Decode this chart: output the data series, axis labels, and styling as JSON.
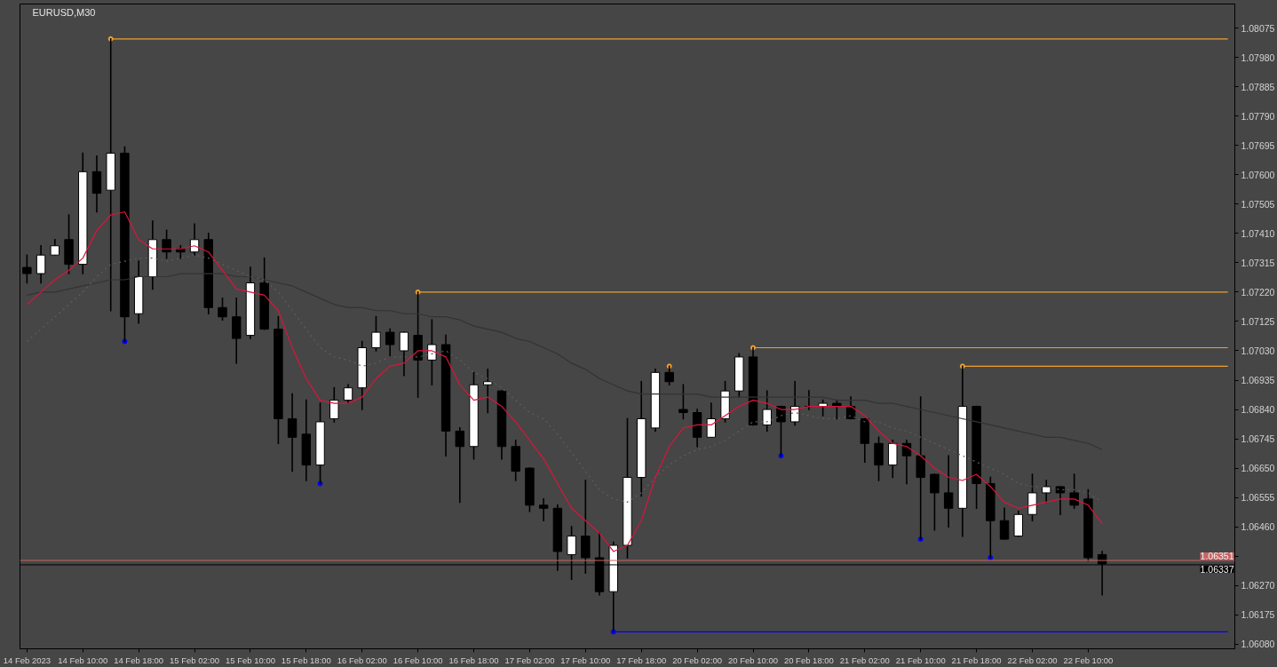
{
  "chart_data": {
    "type": "candlestick",
    "title": "EURUSD,M30",
    "categories": [
      "14 Feb 2023",
      null,
      null,
      null,
      "14 Feb 10:00",
      null,
      null,
      null,
      "14 Feb 18:00",
      null,
      null,
      null,
      "15 Feb 02:00",
      null,
      null,
      null,
      "15 Feb 10:00",
      null,
      null,
      null,
      "15 Feb 18:00",
      null,
      null,
      null,
      "16 Feb 02:00",
      null,
      null,
      null,
      "16 Feb 10:00",
      null,
      null,
      null,
      "16 Feb 18:00",
      null,
      null,
      null,
      "17 Feb 02:00",
      null,
      null,
      null,
      "17 Feb 10:00",
      null,
      null,
      null,
      "17 Feb 18:00",
      null,
      null,
      null,
      "20 Feb 02:00",
      null,
      null,
      null,
      "20 Feb 10:00",
      null,
      null,
      null,
      "20 Feb 18:00",
      null,
      null,
      null,
      "21 Feb 02:00",
      null,
      null,
      null,
      "21 Feb 10:00",
      null,
      null,
      null,
      "21 Feb 18:00",
      null,
      null,
      null,
      "22 Feb 02:00",
      null,
      null,
      null,
      "22 Feb 10:00",
      null,
      null,
      null,
      null,
      null,
      null,
      null,
      null,
      null,
      null
    ],
    "ohlc": [
      [
        1.073,
        1.0734,
        1.0725,
        1.0728
      ],
      [
        1.0728,
        1.0737,
        1.0725,
        1.0734
      ],
      [
        1.0734,
        1.0739,
        1.0734,
        1.0737
      ],
      [
        1.0739,
        1.0747,
        1.0728,
        1.0731
      ],
      [
        1.0731,
        1.0767,
        1.0728,
        1.0761
      ],
      [
        1.0761,
        1.0766,
        1.0748,
        1.0754
      ],
      [
        1.0755,
        1.0804,
        1.0716,
        1.0767
      ],
      [
        1.0767,
        1.0769,
        1.0706,
        1.0714
      ],
      [
        1.0715,
        1.0732,
        1.0712,
        1.0727
      ],
      [
        1.0727,
        1.0745,
        1.0723,
        1.0739
      ],
      [
        1.0739,
        1.0742,
        1.0733,
        1.0735
      ],
      [
        1.0736,
        1.0737,
        1.0733,
        1.0735
      ],
      [
        1.0735,
        1.0744,
        1.0734,
        1.0739
      ],
      [
        1.0739,
        1.0741,
        1.0715,
        1.0717
      ],
      [
        1.0717,
        1.072,
        1.0713,
        1.0714
      ],
      [
        1.0714,
        1.072,
        1.0699,
        1.0707
      ],
      [
        1.0708,
        1.073,
        1.0707,
        1.0725
      ],
      [
        1.0725,
        1.0733,
        1.071,
        1.071
      ],
      [
        1.071,
        1.0714,
        1.0673,
        1.0681
      ],
      [
        1.0681,
        1.0689,
        1.0664,
        1.0675
      ],
      [
        1.0676,
        1.0687,
        1.0661,
        1.0666
      ],
      [
        1.0666,
        1.0686,
        1.066,
        1.068
      ],
      [
        1.0681,
        1.0691,
        1.068,
        1.0687
      ],
      [
        1.0687,
        1.0692,
        1.0686,
        1.0691
      ],
      [
        1.0691,
        1.0706,
        1.0684,
        1.0704
      ],
      [
        1.0704,
        1.0714,
        1.0703,
        1.0709
      ],
      [
        1.0709,
        1.071,
        1.0701,
        1.0705
      ],
      [
        1.0703,
        1.0709,
        1.0695,
        1.0709
      ],
      [
        1.0708,
        1.0722,
        1.0688,
        1.07
      ],
      [
        1.07,
        1.0713,
        1.0692,
        1.0705
      ],
      [
        1.0705,
        1.0708,
        1.0669,
        1.0677
      ],
      [
        1.0677,
        1.0678,
        1.0654,
        1.0672
      ],
      [
        1.0672,
        1.0696,
        1.0668,
        1.0692
      ],
      [
        1.0692,
        1.0697,
        1.0683,
        1.0693
      ],
      [
        1.069,
        1.069,
        1.0668,
        1.0672
      ],
      [
        1.0672,
        1.0674,
        1.0661,
        1.0664
      ],
      [
        1.0665,
        1.0665,
        1.0651,
        1.0653
      ],
      [
        1.0653,
        1.0655,
        1.0648,
        1.0652
      ],
      [
        1.0652,
        1.0653,
        1.0632,
        1.0638
      ],
      [
        1.0637,
        1.0646,
        1.0629,
        1.0643
      ],
      [
        1.0643,
        1.0661,
        1.0631,
        1.0636
      ],
      [
        1.0636,
        1.0644,
        1.0624,
        1.0625
      ],
      [
        1.0625,
        1.0641,
        1.0612,
        1.064
      ],
      [
        1.064,
        1.0681,
        1.0636,
        1.0662
      ],
      [
        1.0662,
        1.0693,
        1.0656,
        1.0681
      ],
      [
        1.0678,
        1.0697,
        1.0677,
        1.0696
      ],
      [
        1.0696,
        1.0698,
        1.0692,
        1.0693
      ],
      [
        1.0684,
        1.0692,
        1.0681,
        1.0683
      ],
      [
        1.0683,
        1.0684,
        1.0672,
        1.0675
      ],
      [
        1.0675,
        1.0686,
        1.0675,
        1.0681
      ],
      [
        1.0681,
        1.0693,
        1.068,
        1.069
      ],
      [
        1.069,
        1.0702,
        1.0688,
        1.0701
      ],
      [
        1.0701,
        1.0704,
        1.0679,
        1.0679
      ],
      [
        1.0679,
        1.069,
        1.0677,
        1.0684
      ],
      [
        1.0685,
        1.0685,
        1.0669,
        1.068
      ],
      [
        1.068,
        1.0693,
        1.0679,
        1.0685
      ],
      [
        1.0685,
        1.069,
        1.0684,
        1.0685
      ],
      [
        1.0685,
        1.0687,
        1.0682,
        1.0686
      ],
      [
        1.0686,
        1.0687,
        1.0681,
        1.0685
      ],
      [
        1.0685,
        1.0688,
        1.0681,
        1.0681
      ],
      [
        1.0681,
        1.0681,
        1.0667,
        1.0673
      ],
      [
        1.0673,
        1.0675,
        1.0661,
        1.0666
      ],
      [
        1.0666,
        1.0674,
        1.0662,
        1.0673
      ],
      [
        1.0673,
        1.0674,
        1.066,
        1.0669
      ],
      [
        1.0669,
        1.0688,
        1.0642,
        1.0662
      ],
      [
        1.0663,
        1.0663,
        1.0645,
        1.0657
      ],
      [
        1.0657,
        1.0669,
        1.0646,
        1.0652
      ],
      [
        1.0652,
        1.0698,
        1.0643,
        1.0685
      ],
      [
        1.0685,
        1.0685,
        1.0652,
        1.066
      ],
      [
        1.066,
        1.0662,
        1.0636,
        1.0648
      ],
      [
        1.0648,
        1.0652,
        1.0642,
        1.0642
      ],
      [
        1.0643,
        1.0651,
        1.0643,
        1.065
      ],
      [
        1.065,
        1.0663,
        1.0648,
        1.0657
      ],
      [
        1.0657,
        1.0661,
        1.0654,
        1.0659
      ],
      [
        1.0659,
        1.0659,
        1.065,
        1.0657
      ],
      [
        1.0657,
        1.0663,
        1.0652,
        1.0653
      ],
      [
        1.0655,
        1.0658,
        1.0635,
        1.0636
      ],
      [
        1.0637,
        1.0638,
        1.0624,
        1.0634
      ],
      null,
      null,
      null,
      null,
      null,
      null,
      null,
      null,
      null
    ],
    "colors": [
      "#000000",
      "#ffffff",
      "#ffffff",
      "#000000",
      "#ffffff",
      "#000000",
      "#ffffff",
      "#000000",
      "#ffffff",
      "#ffffff",
      "#000000",
      "#000000",
      "#ffffff",
      "#000000",
      "#000000",
      "#000000",
      "#ffffff",
      "#000000",
      "#000000",
      "#000000",
      "#000000",
      "#ffffff",
      "#ffffff",
      "#ffffff",
      "#ffffff",
      "#ffffff",
      "#000000",
      "#ffffff",
      "#000000",
      "#ffffff",
      "#000000",
      "#000000",
      "#ffffff",
      "#ffffff",
      "#000000",
      "#000000",
      "#000000",
      "#000000",
      "#000000",
      "#ffffff",
      "#000000",
      "#000000",
      "#ffffff",
      "#ffffff",
      "#ffffff",
      "#ffffff",
      "#000000",
      "#000000",
      "#000000",
      "#ffffff",
      "#ffffff",
      "#ffffff",
      "#000000",
      "#ffffff",
      "#000000",
      "#ffffff",
      "#000000",
      "#ffffff",
      "#000000",
      "#000000",
      "#000000",
      "#000000",
      "#ffffff",
      "#000000",
      "#000000",
      "#000000",
      "#000000",
      "#ffffff",
      "#000000",
      "#000000",
      "#000000",
      "#ffffff",
      "#ffffff",
      "#ffffff",
      "#000000",
      "#000000",
      "#000000",
      "#000000",
      null,
      null,
      null,
      null,
      null,
      null,
      null,
      null,
      null
    ],
    "color": "#000000",
    "series": [
      {
        "type": "line",
        "color": "#333333",
        "values": [
          1.0721,
          1.0722,
          1.0722,
          1.0723,
          1.0724,
          1.0725,
          1.0726,
          1.0726,
          1.0727,
          1.0727,
          1.0727,
          1.0728,
          1.0728,
          1.0728,
          1.0728,
          1.0727,
          1.0727,
          1.0726,
          1.0725,
          1.0724,
          1.0722,
          1.072,
          1.0718,
          1.0717,
          1.0717,
          1.0716,
          1.0716,
          1.0715,
          1.0715,
          1.0714,
          1.0714,
          1.0713,
          1.0711,
          1.071,
          1.0709,
          1.0707,
          1.0706,
          1.0704,
          1.0702,
          1.0699,
          1.0697,
          1.0694,
          1.0692,
          1.069,
          1.0689,
          1.0689,
          1.0689,
          1.0689,
          1.0689,
          1.0688,
          1.0688,
          1.0688,
          1.0688,
          1.0688,
          1.0688,
          1.0688,
          1.0688,
          1.0688,
          1.0687,
          1.0687,
          1.0687,
          1.0686,
          1.0686,
          1.0685,
          1.0684,
          1.0683,
          1.0682,
          1.0681,
          1.068,
          1.0679,
          1.0678,
          1.0677,
          1.0676,
          1.0675,
          1.0675,
          1.0674,
          1.0673,
          1.0671,
          null,
          null,
          null,
          null,
          null,
          null,
          null,
          null,
          null
        ]
      },
      {
        "type": "line",
        "color": "#5e5e5e",
        "line_style": "dotted",
        "values": [
          1.0706,
          1.071,
          1.0714,
          1.0718,
          1.0722,
          1.0727,
          1.0731,
          1.0732,
          1.0733,
          1.0733,
          1.0732,
          1.0733,
          1.0734,
          1.0733,
          1.0731,
          1.0729,
          1.0727,
          1.0726,
          1.0722,
          1.0716,
          1.071,
          1.0704,
          1.0701,
          1.07,
          1.0698,
          1.0699,
          1.0701,
          1.0701,
          1.0701,
          1.0702,
          1.0703,
          1.07,
          1.0696,
          1.0694,
          1.0691,
          1.0687,
          1.0683,
          1.0681,
          1.0676,
          1.067,
          1.0664,
          1.0658,
          1.0655,
          1.0654,
          1.0657,
          1.0662,
          1.0666,
          1.0669,
          1.0671,
          1.0672,
          1.0674,
          1.0677,
          1.068,
          1.068,
          1.0682,
          1.0683,
          1.0682,
          1.0681,
          1.0681,
          1.0682,
          1.068,
          1.068,
          1.0678,
          1.0677,
          1.0675,
          1.0673,
          1.0671,
          1.0669,
          1.0667,
          1.0665,
          1.0663,
          1.066,
          1.0659,
          1.0659,
          1.0658,
          1.0658,
          1.0657,
          1.0654,
          null,
          null,
          null,
          null,
          null,
          null,
          null,
          null,
          null
        ]
      },
      {
        "type": "line",
        "color": "#dc143c",
        "values": [
          1.0718,
          1.0722,
          1.0726,
          1.0729,
          1.0733,
          1.0742,
          1.0747,
          1.0748,
          1.0739,
          1.0736,
          1.0736,
          1.0736,
          1.0737,
          1.0735,
          1.0729,
          1.0723,
          1.0722,
          1.0721,
          1.0716,
          1.0704,
          1.0694,
          1.0687,
          1.0686,
          1.0686,
          1.0688,
          1.0694,
          1.0698,
          1.0699,
          1.0703,
          1.0703,
          1.0701,
          1.0692,
          1.0687,
          1.0688,
          1.0685,
          1.068,
          1.0674,
          1.0668,
          1.066,
          1.0652,
          1.0648,
          1.0644,
          1.0638,
          1.064,
          1.0648,
          1.0662,
          1.0672,
          1.0678,
          1.0679,
          1.0679,
          1.0682,
          1.0685,
          1.0687,
          1.0686,
          1.0684,
          1.0684,
          1.0685,
          1.0685,
          1.0685,
          1.0685,
          1.0682,
          1.0677,
          1.0673,
          1.0672,
          1.0669,
          1.0665,
          1.0662,
          1.0661,
          1.0663,
          1.0659,
          1.0654,
          1.0652,
          1.0653,
          1.0654,
          1.0655,
          1.0655,
          1.0653,
          1.0647,
          null,
          null,
          null,
          null,
          null,
          null,
          null,
          null,
          null
        ]
      },
      {
        "type": "line",
        "color": "#f0a030",
        "values": [
          null,
          null,
          null,
          null,
          null,
          null,
          1.0804,
          1.0804,
          1.0804,
          1.0804,
          1.0804,
          1.0804,
          1.0804,
          1.0804,
          1.0804,
          1.0804,
          1.0804,
          1.0804,
          1.0804,
          1.0804,
          1.0804,
          1.0804,
          1.0804,
          1.0804,
          1.0804,
          1.0804,
          1.0804,
          1.0804,
          1.0804,
          1.0804,
          1.0804,
          1.0804,
          1.0804,
          1.0804,
          1.0804,
          1.0804,
          1.0804,
          1.0804,
          1.0804,
          1.0804,
          1.0804,
          1.0804,
          1.0804,
          1.0804,
          1.0804,
          1.0804,
          1.0804,
          1.0804,
          1.0804,
          1.0804,
          1.0804,
          1.0804,
          1.0804,
          1.0804,
          1.0804,
          1.0804,
          1.0804,
          1.0804,
          1.0804,
          1.0804,
          1.0804,
          1.0804,
          1.0804,
          1.0804,
          1.0804,
          1.0804,
          1.0804,
          1.0804,
          1.0804,
          1.0804,
          1.0804,
          1.0804,
          1.0804,
          1.0804,
          1.0804,
          1.0804,
          1.0804,
          1.0804,
          1.0804,
          1.0804,
          1.0804,
          1.0804,
          1.0804,
          1.0804,
          1.0804,
          1.0804,
          1.0804
        ]
      },
      {
        "type": "line",
        "color": "#f0a030",
        "values": [
          null,
          null,
          null,
          null,
          null,
          null,
          null,
          null,
          null,
          null,
          null,
          null,
          null,
          null,
          null,
          null,
          null,
          null,
          null,
          null,
          null,
          null,
          null,
          null,
          null,
          null,
          null,
          null,
          1.0722,
          1.0722,
          1.0722,
          1.0722,
          1.0722,
          1.0722,
          1.0722,
          1.0722,
          1.0722,
          1.0722,
          1.0722,
          1.0722,
          1.0722,
          1.0722,
          1.0722,
          1.0722,
          1.0722,
          1.0722,
          1.0722,
          1.0722,
          1.0722,
          1.0722,
          1.0722,
          1.0722,
          1.0722,
          1.0722,
          1.0722,
          1.0722,
          1.0722,
          1.0722,
          1.0722,
          1.0722,
          1.0722,
          1.0722,
          1.0722,
          1.0722,
          1.0722,
          1.0722,
          1.0722,
          1.0722,
          1.0722,
          1.0722,
          1.0722,
          1.0722,
          1.0722,
          1.0722,
          1.0722,
          1.0722,
          1.0722,
          1.0722,
          1.0722,
          1.0722,
          1.0722,
          1.0722,
          1.0722,
          1.0722,
          1.0722,
          1.0722,
          1.0722
        ]
      },
      {
        "type": "line",
        "color": "#f0a030",
        "values": [
          null,
          null,
          null,
          null,
          null,
          null,
          null,
          null,
          null,
          null,
          null,
          null,
          null,
          null,
          null,
          null,
          null,
          null,
          null,
          null,
          null,
          null,
          null,
          null,
          null,
          null,
          null,
          null,
          null,
          null,
          null,
          null,
          null,
          null,
          null,
          null,
          null,
          null,
          null,
          null,
          null,
          null,
          null,
          null,
          null,
          null,
          null,
          null,
          null,
          null,
          null,
          null,
          1.0704,
          1.0704,
          1.0704,
          1.0704,
          1.0704,
          1.0704,
          1.0704,
          1.0704,
          1.0704,
          1.0704,
          1.0704,
          1.0704,
          1.0704,
          1.0704,
          1.0704,
          1.0704,
          1.0704,
          1.0704,
          1.0704,
          1.0704,
          1.0704,
          1.0704,
          1.0704,
          1.0704,
          1.0704,
          1.0704,
          1.0704,
          1.0704,
          1.0704,
          1.0704,
          1.0704,
          1.0704,
          1.0704,
          1.0704,
          1.0704
        ]
      },
      {
        "type": "line",
        "color": "#f0a030",
        "values": [
          null,
          null,
          null,
          null,
          null,
          null,
          null,
          null,
          null,
          null,
          null,
          null,
          null,
          null,
          null,
          null,
          null,
          null,
          null,
          null,
          null,
          null,
          null,
          null,
          null,
          null,
          null,
          null,
          null,
          null,
          null,
          null,
          null,
          null,
          null,
          null,
          null,
          null,
          null,
          null,
          null,
          null,
          null,
          null,
          null,
          null,
          null,
          null,
          null,
          null,
          null,
          null,
          null,
          null,
          null,
          null,
          null,
          null,
          null,
          null,
          null,
          null,
          null,
          null,
          null,
          null,
          null,
          1.0698,
          1.0698,
          1.0698,
          1.0698,
          1.0698,
          1.0698,
          1.0698,
          1.0698,
          1.0698,
          1.0698,
          1.0698,
          1.0698,
          1.0698,
          1.0698,
          1.0698,
          1.0698,
          1.0698,
          1.0698,
          1.0698,
          1.0698
        ]
      },
      {
        "type": "line",
        "color": "#0000ff",
        "values": [
          null,
          null,
          null,
          null,
          null,
          null,
          null,
          null,
          null,
          null,
          null,
          null,
          null,
          null,
          null,
          null,
          null,
          null,
          null,
          null,
          null,
          null,
          null,
          null,
          null,
          null,
          null,
          null,
          null,
          null,
          null,
          null,
          null,
          null,
          null,
          null,
          null,
          null,
          null,
          null,
          null,
          null,
          1.0612,
          1.0612,
          1.0612,
          1.0612,
          1.0612,
          1.0612,
          1.0612,
          1.0612,
          1.0612,
          1.0612,
          1.0612,
          1.0612,
          1.0612,
          1.0612,
          1.0612,
          1.0612,
          1.0612,
          1.0612,
          1.0612,
          1.0612,
          1.0612,
          1.0612,
          1.0612,
          1.0612,
          1.0612,
          1.0612,
          1.0612,
          1.0612,
          1.0612,
          1.0612,
          1.0612,
          1.0612,
          1.0612,
          1.0612,
          1.0612,
          1.0612,
          1.0612,
          1.0612,
          1.0612,
          1.0612,
          1.0612,
          1.0612,
          1.0612,
          1.0612,
          1.0612
        ]
      },
      {
        "type": "scatter",
        "color": "#f0a030",
        "marker": "circle",
        "values": [
          null,
          null,
          null,
          null,
          null,
          null,
          1.0804,
          null,
          null,
          null,
          null,
          null,
          null,
          null,
          null,
          null,
          null,
          null,
          null,
          null,
          null,
          null,
          null,
          null,
          null,
          null,
          null,
          null,
          1.0722,
          null,
          null,
          null,
          null,
          null,
          null,
          null,
          null,
          null,
          null,
          null,
          null,
          null,
          null,
          null,
          null,
          null,
          1.0698,
          null,
          null,
          null,
          null,
          null,
          1.0704,
          null,
          null,
          null,
          null,
          null,
          null,
          null,
          null,
          null,
          null,
          null,
          null,
          null,
          null,
          1.0698,
          null,
          null,
          null,
          null,
          null,
          null,
          null,
          null,
          null,
          null,
          null,
          null,
          null,
          null,
          null,
          null,
          null,
          null,
          null
        ]
      },
      {
        "type": "scatter",
        "color": "#0000ff",
        "marker": "circle",
        "values": [
          null,
          null,
          null,
          null,
          null,
          null,
          null,
          1.0706,
          null,
          null,
          null,
          null,
          null,
          null,
          null,
          null,
          null,
          null,
          null,
          null,
          null,
          1.066,
          null,
          null,
          null,
          null,
          null,
          null,
          null,
          null,
          null,
          null,
          null,
          null,
          null,
          null,
          null,
          null,
          null,
          null,
          null,
          null,
          1.0612,
          null,
          null,
          null,
          null,
          null,
          null,
          null,
          null,
          null,
          null,
          null,
          1.0669,
          null,
          null,
          null,
          null,
          null,
          null,
          null,
          null,
          null,
          1.0642,
          null,
          null,
          null,
          null,
          1.0636,
          null,
          null,
          null,
          null,
          null,
          null,
          null,
          null,
          null,
          null,
          null,
          null,
          null,
          null,
          null,
          null,
          null
        ]
      }
    ],
    "ref_lines": [
      {
        "axis": "y",
        "value": 1.06351,
        "label": "1.06351",
        "color": "#c86464"
      },
      {
        "axis": "y",
        "value": 1.06337,
        "label": "1.06337",
        "color": "#000000"
      }
    ],
    "ylim": [
      1.06065,
      1.08153
    ],
    "yticks": [
      {
        "value": 1.0608,
        "label": "1.06080"
      },
      1.06175,
      {
        "value": 1.0627,
        "label": "1.06270"
      },
      {
        "value": 1.06365,
        "label": null
      },
      {
        "value": 1.0646,
        "label": "1.06460"
      },
      1.06555,
      {
        "value": 1.0665,
        "label": "1.06650"
      },
      1.06745,
      {
        "value": 1.0684,
        "label": "1.06840"
      },
      1.06935,
      {
        "value": 1.0703,
        "label": "1.07030"
      },
      1.07125,
      {
        "value": 1.0722,
        "label": "1.07220"
      },
      1.07315,
      {
        "value": 1.0741,
        "label": "1.07410"
      },
      1.07505,
      {
        "value": 1.076,
        "label": "1.07600"
      },
      1.07695,
      {
        "value": 1.0779,
        "label": "1.07790"
      },
      1.07885,
      {
        "value": 1.0798,
        "label": "1.07980"
      },
      1.08075
    ]
  }
}
